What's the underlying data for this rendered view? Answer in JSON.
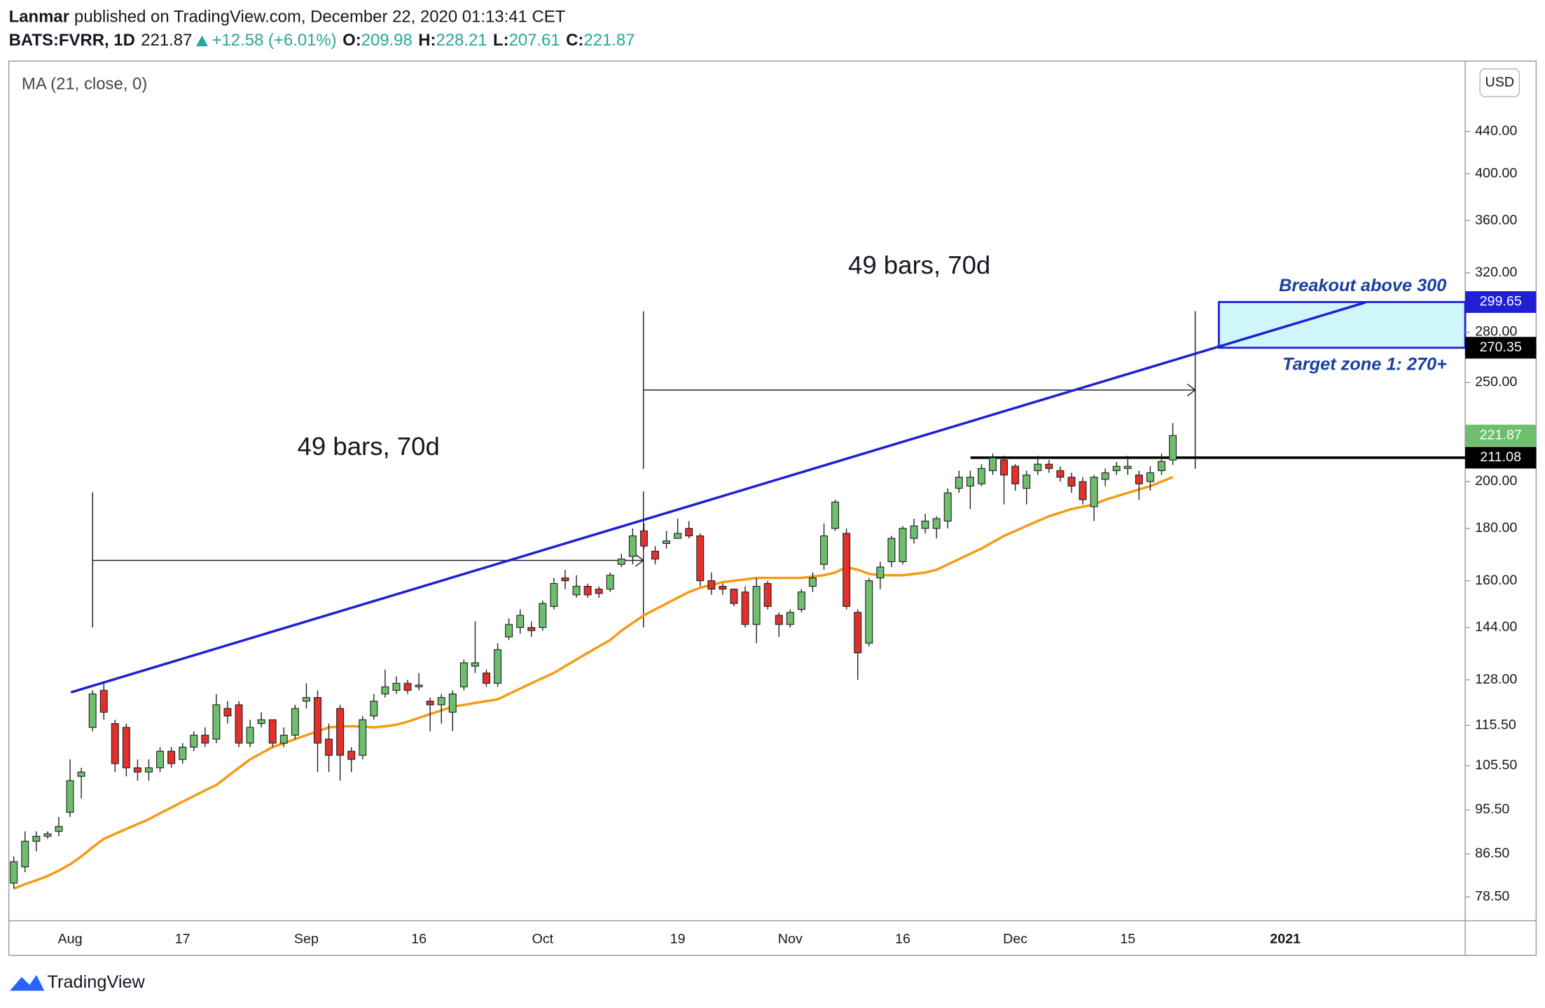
{
  "header": {
    "author": "Lanmar",
    "published": "published on TradingView.com, December 22, 2020 01:13:41 CET",
    "symbol": "BATS:FVRR, 1D",
    "last": 221.87,
    "change": "+12.58 (+6.01%)",
    "ohlc": [
      {
        "label": "O:",
        "value": 209.98
      },
      {
        "label": "H:",
        "value": 228.21
      },
      {
        "label": "L:",
        "value": 207.61
      },
      {
        "label": "C:",
        "value": 221.87
      }
    ],
    "currency": "USD",
    "brand": "TradingView"
  },
  "chart_data": {
    "type": "candlestick",
    "log_scale": true,
    "grid": false,
    "up_color": "#6dbf6d",
    "down_color": "#e2312d",
    "x": [
      "2020-07-27",
      "2020-07-28",
      "2020-07-29",
      "2020-07-30",
      "2020-07-31",
      "2020-08-03",
      "2020-08-04",
      "2020-08-05",
      "2020-08-06",
      "2020-08-07",
      "2020-08-10",
      "2020-08-11",
      "2020-08-12",
      "2020-08-13",
      "2020-08-14",
      "2020-08-17",
      "2020-08-18",
      "2020-08-19",
      "2020-08-20",
      "2020-08-21",
      "2020-08-24",
      "2020-08-25",
      "2020-08-26",
      "2020-08-27",
      "2020-08-28",
      "2020-08-31",
      "2020-09-01",
      "2020-09-02",
      "2020-09-03",
      "2020-09-04",
      "2020-09-08",
      "2020-09-09",
      "2020-09-10",
      "2020-09-11",
      "2020-09-14",
      "2020-09-15",
      "2020-09-16",
      "2020-09-17",
      "2020-09-18",
      "2020-09-21",
      "2020-09-22",
      "2020-09-23",
      "2020-09-24",
      "2020-09-25",
      "2020-09-28",
      "2020-09-29",
      "2020-09-30",
      "2020-10-01",
      "2020-10-02",
      "2020-10-05",
      "2020-10-06",
      "2020-10-07",
      "2020-10-08",
      "2020-10-09",
      "2020-10-12",
      "2020-10-13",
      "2020-10-14",
      "2020-10-15",
      "2020-10-16",
      "2020-10-19",
      "2020-10-20",
      "2020-10-21",
      "2020-10-22",
      "2020-10-23",
      "2020-10-26",
      "2020-10-27",
      "2020-10-28",
      "2020-10-29",
      "2020-10-30",
      "2020-11-02",
      "2020-11-03",
      "2020-11-04",
      "2020-11-05",
      "2020-11-06",
      "2020-11-09",
      "2020-11-10",
      "2020-11-11",
      "2020-11-12",
      "2020-11-13",
      "2020-11-16",
      "2020-11-17",
      "2020-11-18",
      "2020-11-19",
      "2020-11-20",
      "2020-11-23",
      "2020-11-24",
      "2020-11-25",
      "2020-11-27",
      "2020-11-30",
      "2020-12-01",
      "2020-12-02",
      "2020-12-03",
      "2020-12-04",
      "2020-12-07",
      "2020-12-08",
      "2020-12-09",
      "2020-12-10",
      "2020-12-11",
      "2020-12-14",
      "2020-12-15",
      "2020-12-16",
      "2020-12-17",
      "2020-12-18",
      "2020-12-21"
    ],
    "open": [
      81,
      84,
      89,
      90,
      91,
      95,
      103,
      115,
      125,
      116,
      115,
      105,
      104,
      105,
      109,
      107,
      110,
      113,
      112,
      120,
      121,
      111,
      116,
      117,
      111,
      113,
      122,
      123,
      112,
      120,
      109,
      108,
      118,
      124,
      125,
      127,
      126,
      122,
      121,
      119,
      126,
      132,
      130,
      127,
      141,
      144,
      144,
      144,
      151,
      161,
      155,
      158,
      157,
      157,
      166,
      169,
      179,
      171,
      174,
      176,
      180,
      177,
      160,
      158,
      157,
      156,
      145,
      159,
      148,
      145,
      150,
      158,
      166,
      180,
      178,
      149,
      139,
      161,
      167,
      167,
      176,
      180,
      180,
      183,
      197,
      198,
      199,
      205,
      210,
      207,
      197,
      205,
      208,
      205,
      202,
      200,
      189,
      201,
      205,
      206,
      203,
      200,
      205,
      209.98
    ],
    "high": [
      86,
      91,
      91,
      91,
      94,
      107,
      105,
      125,
      127,
      117,
      116,
      107,
      107,
      110,
      110,
      111,
      114,
      115,
      124,
      122,
      122,
      117,
      119,
      117,
      115,
      121,
      127,
      125,
      116,
      121,
      110,
      118,
      124,
      131,
      129,
      128,
      130,
      123,
      124,
      125,
      134,
      146,
      131,
      139,
      147,
      150,
      146,
      153,
      161,
      164,
      162,
      159,
      158,
      163,
      170,
      180,
      182,
      173,
      179,
      184,
      183,
      178,
      163,
      159,
      157,
      158,
      161,
      160,
      149,
      150,
      157,
      163,
      182,
      192,
      180,
      150,
      161,
      167,
      177,
      181,
      184,
      186,
      185,
      197,
      205,
      205,
      208,
      213,
      212,
      208,
      205,
      212,
      210,
      207,
      204,
      202,
      203,
      206,
      209,
      212,
      205,
      207,
      213,
      228.21
    ],
    "low": [
      80,
      83,
      87,
      89.5,
      90,
      94,
      98,
      114,
      117,
      104,
      103,
      102,
      102,
      104,
      105,
      106,
      109,
      110,
      111,
      116,
      110,
      110,
      115,
      110,
      110,
      112,
      120,
      104,
      104,
      102,
      104,
      107,
      117,
      123,
      124,
      124,
      125,
      114,
      116,
      114,
      125,
      130,
      126,
      126,
      140,
      142,
      141,
      143,
      150,
      157,
      154,
      154,
      154,
      156,
      165,
      166,
      172,
      166,
      172,
      176,
      176,
      158,
      155,
      155,
      151,
      144,
      139,
      150,
      141,
      144,
      149,
      156,
      164,
      179,
      150,
      128,
      138,
      157,
      165,
      166,
      174,
      178,
      176,
      180,
      195,
      188,
      198,
      203,
      190,
      196,
      190,
      203,
      204,
      200,
      195,
      190,
      183,
      198,
      203,
      203,
      192,
      196,
      203,
      207.61
    ],
    "close": [
      85,
      89,
      90,
      90.5,
      92,
      102,
      104,
      124,
      119,
      106,
      105,
      104,
      105,
      109,
      106,
      110,
      113,
      111,
      121,
      118,
      111,
      115,
      117,
      111,
      113,
      120,
      123,
      111,
      108,
      108,
      107,
      117,
      122,
      126,
      127,
      125,
      126.5,
      121,
      123,
      124,
      133,
      133,
      127,
      137,
      145,
      148,
      143,
      152,
      159,
      160,
      158,
      155,
      155.5,
      162,
      168,
      177,
      173,
      168,
      175,
      178,
      177,
      160,
      157,
      157,
      152,
      145,
      158,
      151,
      145,
      149,
      156,
      161,
      177,
      191,
      151,
      136,
      160,
      165,
      176,
      180,
      181,
      183,
      184,
      195,
      202,
      202,
      206,
      211,
      203,
      199,
      203,
      208,
      206,
      202,
      198,
      192,
      202,
      204,
      207,
      207,
      199,
      204,
      209.29,
      221.87
    ],
    "ma": {
      "name": "MA (21, close, 0)",
      "color": "#f59a16",
      "values": [
        80,
        80.8,
        81.5,
        82.3,
        83.3,
        84.5,
        86,
        87.8,
        89.5,
        90.5,
        91.5,
        92.5,
        93.5,
        94.8,
        96,
        97.3,
        98.5,
        99.8,
        101,
        103,
        105,
        107,
        108.5,
        110,
        111,
        112,
        113,
        114,
        115,
        115.2,
        115.3,
        115.2,
        115,
        115.3,
        115.7,
        116.5,
        117.5,
        118.5,
        119.5,
        120.5,
        121,
        121.5,
        122,
        122.5,
        124,
        125.5,
        127,
        128.5,
        130,
        132,
        134,
        136,
        138,
        140,
        143,
        145.5,
        148,
        150,
        152,
        154,
        156,
        157.5,
        158.5,
        159.5,
        160,
        160.5,
        161,
        161,
        161,
        161,
        161,
        161.5,
        162,
        163,
        165,
        164,
        162.5,
        162,
        162,
        162,
        162.5,
        163,
        164,
        166,
        168,
        170,
        172,
        174.5,
        177,
        179,
        181,
        183,
        185,
        186.5,
        188,
        189,
        190,
        192,
        193.5,
        195,
        196.5,
        198,
        200,
        202
      ]
    },
    "ylim": [
      74.4,
      515.5
    ],
    "yticks": [
      {
        "value": 78.5,
        "label": "78.50"
      },
      {
        "value": 86.5,
        "label": "86.50"
      },
      {
        "value": 95.5,
        "label": "95.50"
      },
      {
        "value": 105.5,
        "label": "105.50"
      },
      {
        "value": 115.5,
        "label": "115.50"
      },
      {
        "value": 128,
        "label": "128.00"
      },
      {
        "value": 144,
        "label": "144.00"
      },
      {
        "value": 160,
        "label": "160.00"
      },
      {
        "value": 180,
        "label": "180.00"
      },
      {
        "value": 200,
        "label": "200.00"
      },
      {
        "value": 250,
        "label": "250.00"
      },
      {
        "value": 280,
        "label": "280.00"
      },
      {
        "value": 320,
        "label": "320.00"
      },
      {
        "value": 360,
        "label": "360.00"
      },
      {
        "value": 400,
        "label": "400.00"
      },
      {
        "value": 440,
        "label": "440.00"
      }
    ],
    "xticks": [
      {
        "value": "2020-08-03",
        "label": "Aug"
      },
      {
        "value": "2020-08-17",
        "label": "17"
      },
      {
        "value": "2020-09-01",
        "label": "Sep"
      },
      {
        "value": "2020-09-16",
        "label": "16"
      },
      {
        "value": "2020-10-01",
        "label": "Oct"
      },
      {
        "value": "2020-10-19",
        "label": "19"
      },
      {
        "value": "2020-11-02",
        "label": "Nov"
      },
      {
        "value": "2020-11-16",
        "label": "16"
      },
      {
        "value": "2020-12-01",
        "label": "Dec"
      },
      {
        "value": "2020-12-15",
        "label": "15"
      },
      {
        "value": "2021-01-04",
        "label": "2021"
      }
    ],
    "price_labels": [
      {
        "value": 299.65,
        "color": "#1f1fd6"
      },
      {
        "value": 270.35,
        "color": "#000000"
      },
      {
        "value": 221.87,
        "color": "#6dbf6d"
      },
      {
        "value": 211.08,
        "color": "#000000"
      }
    ],
    "annotations": [
      "49 bars, 70d",
      "49 bars, 70d",
      "Breakout above 300",
      "Target zone 1: 270+"
    ]
  }
}
